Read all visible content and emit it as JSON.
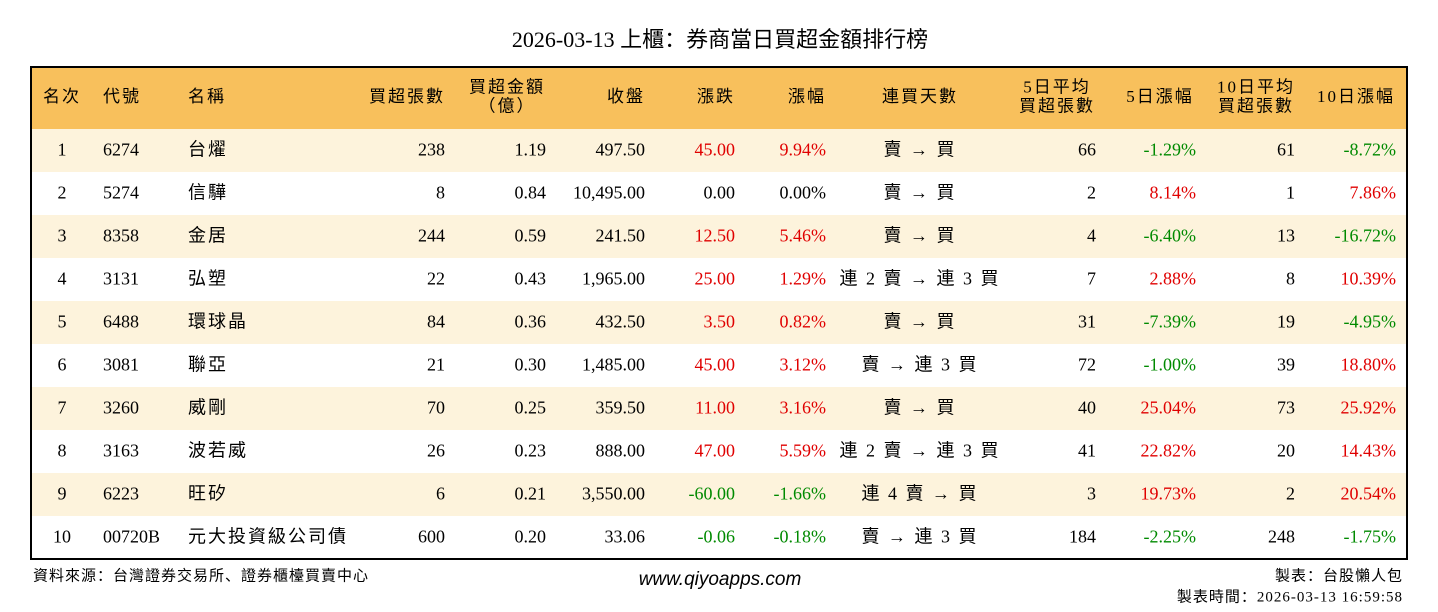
{
  "header": {
    "title": "2026-03-13 上櫃：券商當日買超金額排行榜"
  },
  "table": {
    "columns": [
      [
        "名次"
      ],
      [
        "代號"
      ],
      [
        "名稱"
      ],
      [
        "買超張數"
      ],
      [
        "買超金額",
        "（億）"
      ],
      [
        "收盤"
      ],
      [
        "漲跌"
      ],
      [
        "漲幅"
      ],
      [
        "連買天數"
      ],
      [
        "5日平均",
        "買超張數"
      ],
      [
        "5日漲幅"
      ],
      [
        "10日平均",
        "買超張數"
      ],
      [
        "10日漲幅"
      ]
    ],
    "rows": [
      [
        "1",
        "6274",
        "台燿",
        "238",
        "1.19",
        "497.50",
        "45.00",
        "9.94%",
        "賣 → 買",
        "66",
        "-1.29%",
        "61",
        "-8.72%"
      ],
      [
        "2",
        "5274",
        "信驊",
        "8",
        "0.84",
        "10,495.00",
        "0.00",
        "0.00%",
        "賣 → 買",
        "2",
        "8.14%",
        "1",
        "7.86%"
      ],
      [
        "3",
        "8358",
        "金居",
        "244",
        "0.59",
        "241.50",
        "12.50",
        "5.46%",
        "賣 → 買",
        "4",
        "-6.40%",
        "13",
        "-16.72%"
      ],
      [
        "4",
        "3131",
        "弘塑",
        "22",
        "0.43",
        "1,965.00",
        "25.00",
        "1.29%",
        "連 2 賣 → 連 3 買",
        "7",
        "2.88%",
        "8",
        "10.39%"
      ],
      [
        "5",
        "6488",
        "環球晶",
        "84",
        "0.36",
        "432.50",
        "3.50",
        "0.82%",
        "賣 → 買",
        "31",
        "-7.39%",
        "19",
        "-4.95%"
      ],
      [
        "6",
        "3081",
        "聯亞",
        "21",
        "0.30",
        "1,485.00",
        "45.00",
        "3.12%",
        "賣 → 連 3 買",
        "72",
        "-1.00%",
        "39",
        "18.80%"
      ],
      [
        "7",
        "3260",
        "威剛",
        "70",
        "0.25",
        "359.50",
        "11.00",
        "3.16%",
        "賣 → 買",
        "40",
        "25.04%",
        "73",
        "25.92%"
      ],
      [
        "8",
        "3163",
        "波若威",
        "26",
        "0.23",
        "888.00",
        "47.00",
        "5.59%",
        "連 2 賣 → 連 3 買",
        "41",
        "22.82%",
        "20",
        "14.43%"
      ],
      [
        "9",
        "6223",
        "旺矽",
        "6",
        "0.21",
        "3,550.00",
        "-60.00",
        "-1.66%",
        "連 4 賣 → 買",
        "3",
        "19.73%",
        "2",
        "20.54%"
      ],
      [
        "10",
        "00720B",
        "元大投資級公司債",
        "600",
        "0.20",
        "33.06",
        "-0.06",
        "-0.18%",
        "賣 → 連 3 買",
        "184",
        "-2.25%",
        "248",
        "-1.75%"
      ]
    ]
  },
  "footer": {
    "source": "資料來源：台灣證券交易所、證券櫃檯買賣中心",
    "site": "www.qiyoapps.com",
    "maker": "製表：台股懶人包",
    "time": "製表時間：2026-03-13 16:59:58"
  }
}
